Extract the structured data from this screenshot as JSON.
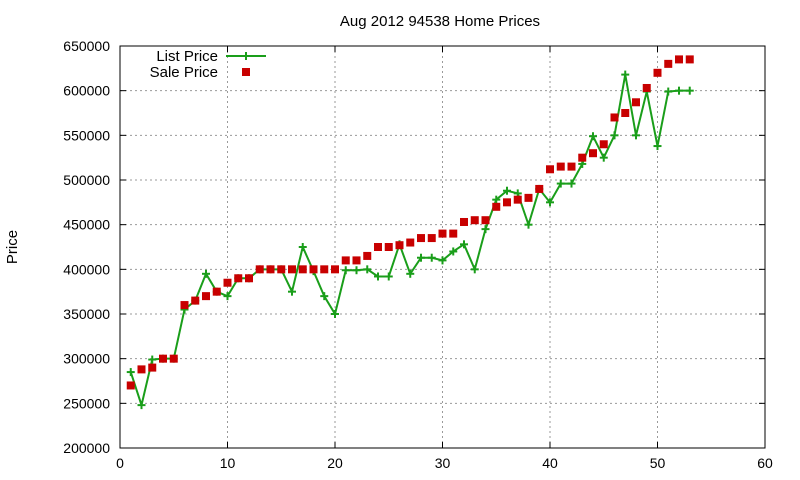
{
  "chart_data": {
    "type": "line",
    "title": "Aug 2012 94538 Home Prices",
    "xlabel": "",
    "ylabel": "Price",
    "xlim": [
      0,
      60
    ],
    "ylim": [
      200000,
      650000
    ],
    "xticks": [
      0,
      10,
      20,
      30,
      40,
      50,
      60
    ],
    "yticks": [
      200000,
      250000,
      300000,
      350000,
      400000,
      450000,
      500000,
      550000,
      600000,
      650000
    ],
    "grid": true,
    "legend_position": "top-left",
    "series": [
      {
        "name": "List Price",
        "style": "line+cross",
        "color": "#1a9e1a",
        "points": [
          [
            1,
            285000
          ],
          [
            2,
            248000
          ],
          [
            3,
            299000
          ],
          [
            4,
            300000
          ],
          [
            5,
            300000
          ],
          [
            6,
            355000
          ],
          [
            7,
            365000
          ],
          [
            8,
            395000
          ],
          [
            9,
            375000
          ],
          [
            10,
            370000
          ],
          [
            11,
            390000
          ],
          [
            12,
            390000
          ],
          [
            13,
            400000
          ],
          [
            14,
            400000
          ],
          [
            15,
            400000
          ],
          [
            16,
            375000
          ],
          [
            17,
            425000
          ],
          [
            18,
            398000
          ],
          [
            19,
            370000
          ],
          [
            20,
            350000
          ],
          [
            21,
            399000
          ],
          [
            22,
            399000
          ],
          [
            23,
            400000
          ],
          [
            24,
            392000
          ],
          [
            25,
            392000
          ],
          [
            26,
            428000
          ],
          [
            27,
            395000
          ],
          [
            28,
            413000
          ],
          [
            29,
            413000
          ],
          [
            30,
            410000
          ],
          [
            31,
            420000
          ],
          [
            32,
            428000
          ],
          [
            33,
            400000
          ],
          [
            34,
            445000
          ],
          [
            35,
            478000
          ],
          [
            36,
            488000
          ],
          [
            37,
            485000
          ],
          [
            38,
            450000
          ],
          [
            39,
            490000
          ],
          [
            40,
            475000
          ],
          [
            41,
            496000
          ],
          [
            42,
            496000
          ],
          [
            43,
            518000
          ],
          [
            44,
            549000
          ],
          [
            45,
            525000
          ],
          [
            46,
            550000
          ],
          [
            47,
            618000
          ],
          [
            48,
            550000
          ],
          [
            49,
            599000
          ],
          [
            50,
            538000
          ],
          [
            51,
            599000
          ],
          [
            52,
            600000
          ],
          [
            53,
            600000
          ]
        ]
      },
      {
        "name": "Sale Price",
        "style": "square",
        "color": "#c80000",
        "points": [
          [
            1,
            270000
          ],
          [
            2,
            288000
          ],
          [
            3,
            290000
          ],
          [
            4,
            300000
          ],
          [
            5,
            300000
          ],
          [
            6,
            360000
          ],
          [
            7,
            365000
          ],
          [
            8,
            370000
          ],
          [
            9,
            375000
          ],
          [
            10,
            385000
          ],
          [
            11,
            390000
          ],
          [
            12,
            390000
          ],
          [
            13,
            400000
          ],
          [
            14,
            400000
          ],
          [
            15,
            400000
          ],
          [
            16,
            400000
          ],
          [
            17,
            400000
          ],
          [
            18,
            400000
          ],
          [
            19,
            400000
          ],
          [
            20,
            400000
          ],
          [
            21,
            410000
          ],
          [
            22,
            410000
          ],
          [
            23,
            415000
          ],
          [
            24,
            425000
          ],
          [
            25,
            425000
          ],
          [
            26,
            427000
          ],
          [
            27,
            430000
          ],
          [
            28,
            435000
          ],
          [
            29,
            435000
          ],
          [
            30,
            440000
          ],
          [
            31,
            440000
          ],
          [
            32,
            453000
          ],
          [
            33,
            455000
          ],
          [
            34,
            455000
          ],
          [
            35,
            470000
          ],
          [
            36,
            475000
          ],
          [
            37,
            478000
          ],
          [
            38,
            480000
          ],
          [
            39,
            490000
          ],
          [
            40,
            512000
          ],
          [
            41,
            515000
          ],
          [
            42,
            515000
          ],
          [
            43,
            525000
          ],
          [
            44,
            530000
          ],
          [
            45,
            540000
          ],
          [
            46,
            570000
          ],
          [
            47,
            575000
          ],
          [
            48,
            587000
          ],
          [
            49,
            603000
          ],
          [
            50,
            620000
          ],
          [
            51,
            630000
          ],
          [
            52,
            635000
          ],
          [
            53,
            635000
          ]
        ]
      }
    ]
  }
}
